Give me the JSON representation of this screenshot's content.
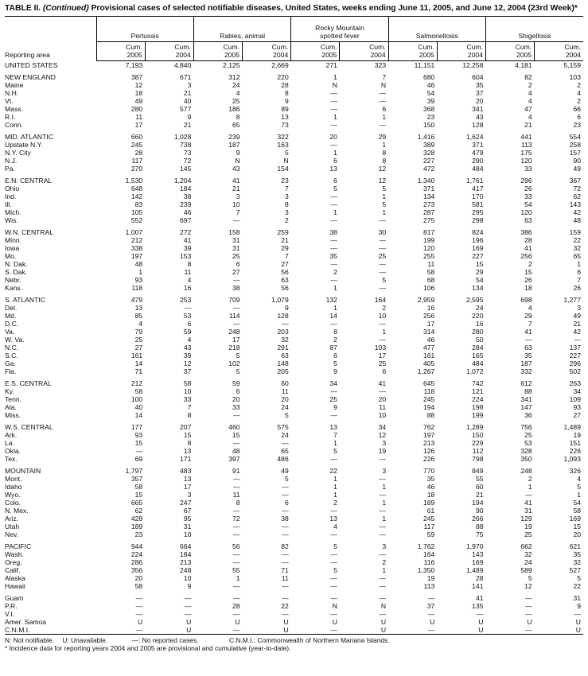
{
  "title": {
    "prefix": "TABLE II. ",
    "continued": "(Continued)",
    "text": " Provisional cases of selected notifiable diseases, United States, weeks ending June 11, 2005, and June 12, 2004 (23rd Week)*"
  },
  "header": {
    "reporting_area": "Reporting area",
    "diseases": [
      "Pertussis",
      "Rabies, animal",
      "Rocky Mountain spotted fever",
      "Salmonellosis",
      "Shigellosis"
    ],
    "cum_label": "Cum.",
    "years": [
      "2005",
      "2004"
    ]
  },
  "groups": [
    [
      [
        "UNITED STATES",
        "7,193",
        "4,840",
        "2,125",
        "2,669",
        "271",
        "323",
        "11,151",
        "12,258",
        "4,181",
        "5,159"
      ]
    ],
    [
      [
        "NEW ENGLAND",
        "387",
        "671",
        "312",
        "220",
        "1",
        "7",
        "680",
        "604",
        "82",
        "103"
      ],
      [
        "Maine",
        "12",
        "3",
        "24",
        "28",
        "N",
        "N",
        "46",
        "35",
        "2",
        "2"
      ],
      [
        "N.H.",
        "18",
        "21",
        "4",
        "8",
        "—",
        "—",
        "54",
        "37",
        "4",
        "4"
      ],
      [
        "Vt.",
        "49",
        "40",
        "25",
        "9",
        "—",
        "—",
        "39",
        "20",
        "4",
        "2"
      ],
      [
        "Mass.",
        "280",
        "577",
        "186",
        "89",
        "—",
        "6",
        "368",
        "341",
        "47",
        "66"
      ],
      [
        "R.I.",
        "11",
        "9",
        "8",
        "13",
        "1",
        "1",
        "23",
        "43",
        "4",
        "6"
      ],
      [
        "Conn.",
        "17",
        "21",
        "65",
        "73",
        "—",
        "—",
        "150",
        "128",
        "21",
        "23"
      ]
    ],
    [
      [
        "MID. ATLANTIC",
        "660",
        "1,028",
        "239",
        "322",
        "20",
        "29",
        "1,416",
        "1,624",
        "441",
        "554"
      ],
      [
        "Upstate N.Y.",
        "245",
        "738",
        "187",
        "163",
        "—",
        "1",
        "389",
        "371",
        "113",
        "258"
      ],
      [
        "N.Y. City",
        "28",
        "73",
        "9",
        "5",
        "1",
        "8",
        "328",
        "479",
        "175",
        "157"
      ],
      [
        "N.J.",
        "117",
        "72",
        "N",
        "N",
        "6",
        "8",
        "227",
        "290",
        "120",
        "90"
      ],
      [
        "Pa.",
        "270",
        "145",
        "43",
        "154",
        "13",
        "12",
        "472",
        "484",
        "33",
        "49"
      ]
    ],
    [
      [
        "E.N. CENTRAL",
        "1,530",
        "1,204",
        "41",
        "23",
        "6",
        "12",
        "1,340",
        "1,761",
        "296",
        "367"
      ],
      [
        "Ohio",
        "648",
        "184",
        "21",
        "7",
        "5",
        "5",
        "371",
        "417",
        "26",
        "72"
      ],
      [
        "Ind.",
        "142",
        "38",
        "3",
        "3",
        "—",
        "1",
        "134",
        "170",
        "33",
        "62"
      ],
      [
        "Ill.",
        "83",
        "239",
        "10",
        "8",
        "—",
        "5",
        "273",
        "581",
        "54",
        "143"
      ],
      [
        "Mich.",
        "105",
        "46",
        "7",
        "3",
        "1",
        "1",
        "287",
        "295",
        "120",
        "42"
      ],
      [
        "Wis.",
        "552",
        "697",
        "—",
        "2",
        "—",
        "—",
        "275",
        "298",
        "63",
        "48"
      ]
    ],
    [
      [
        "W.N. CENTRAL",
        "1,007",
        "272",
        "158",
        "259",
        "38",
        "30",
        "817",
        "824",
        "386",
        "159"
      ],
      [
        "Minn.",
        "212",
        "41",
        "31",
        "21",
        "—",
        "—",
        "199",
        "196",
        "28",
        "22"
      ],
      [
        "Iowa",
        "338",
        "39",
        "31",
        "29",
        "—",
        "—",
        "120",
        "169",
        "41",
        "32"
      ],
      [
        "Mo.",
        "197",
        "153",
        "25",
        "7",
        "35",
        "25",
        "255",
        "227",
        "256",
        "65"
      ],
      [
        "N. Dak.",
        "48",
        "8",
        "6",
        "27",
        "—",
        "—",
        "11",
        "15",
        "2",
        "1"
      ],
      [
        "S. Dak.",
        "1",
        "11",
        "27",
        "56",
        "2",
        "—",
        "58",
        "29",
        "15",
        "6"
      ],
      [
        "Nebr.",
        "93",
        "4",
        "—",
        "63",
        "—",
        "5",
        "68",
        "54",
        "26",
        "7"
      ],
      [
        "Kans.",
        "118",
        "16",
        "38",
        "56",
        "1",
        "—",
        "106",
        "134",
        "18",
        "26"
      ]
    ],
    [
      [
        "S. ATLANTIC",
        "479",
        "253",
        "709",
        "1,079",
        "132",
        "164",
        "2,959",
        "2,595",
        "698",
        "1,277"
      ],
      [
        "Del.",
        "13",
        "—",
        "—",
        "9",
        "1",
        "2",
        "16",
        "24",
        "4",
        "3"
      ],
      [
        "Md.",
        "85",
        "53",
        "114",
        "128",
        "14",
        "10",
        "256",
        "220",
        "29",
        "49"
      ],
      [
        "D.C.",
        "4",
        "6",
        "—",
        "—",
        "—",
        "—",
        "17",
        "16",
        "7",
        "21"
      ],
      [
        "Va.",
        "79",
        "59",
        "248",
        "203",
        "8",
        "1",
        "314",
        "280",
        "41",
        "42"
      ],
      [
        "W. Va.",
        "25",
        "4",
        "17",
        "32",
        "2",
        "—",
        "46",
        "50",
        "—",
        "—"
      ],
      [
        "N.C.",
        "27",
        "43",
        "218",
        "291",
        "87",
        "103",
        "477",
        "284",
        "63",
        "137"
      ],
      [
        "S.C.",
        "161",
        "39",
        "5",
        "63",
        "6",
        "17",
        "161",
        "165",
        "35",
        "227"
      ],
      [
        "Ga.",
        "14",
        "12",
        "102",
        "148",
        "5",
        "25",
        "405",
        "484",
        "187",
        "296"
      ],
      [
        "Fla.",
        "71",
        "37",
        "5",
        "205",
        "9",
        "6",
        "1,267",
        "1,072",
        "332",
        "502"
      ]
    ],
    [
      [
        "E.S. CENTRAL",
        "212",
        "58",
        "59",
        "60",
        "34",
        "41",
        "645",
        "742",
        "612",
        "263"
      ],
      [
        "Ky.",
        "58",
        "10",
        "6",
        "11",
        "—",
        "—",
        "118",
        "121",
        "88",
        "34"
      ],
      [
        "Tenn.",
        "100",
        "33",
        "20",
        "20",
        "25",
        "20",
        "245",
        "224",
        "341",
        "109"
      ],
      [
        "Ala.",
        "40",
        "7",
        "33",
        "24",
        "9",
        "11",
        "194",
        "198",
        "147",
        "93"
      ],
      [
        "Miss.",
        "14",
        "8",
        "—",
        "5",
        "—",
        "10",
        "88",
        "199",
        "36",
        "27"
      ]
    ],
    [
      [
        "W.S. CENTRAL",
        "177",
        "207",
        "460",
        "575",
        "13",
        "34",
        "762",
        "1,289",
        "756",
        "1,489"
      ],
      [
        "Ark.",
        "93",
        "15",
        "15",
        "24",
        "7",
        "12",
        "197",
        "150",
        "25",
        "19"
      ],
      [
        "La.",
        "15",
        "8",
        "—",
        "—",
        "1",
        "3",
        "213",
        "229",
        "53",
        "151"
      ],
      [
        "Okla.",
        "—",
        "13",
        "48",
        "65",
        "5",
        "19",
        "126",
        "112",
        "328",
        "226"
      ],
      [
        "Tex.",
        "69",
        "171",
        "397",
        "486",
        "—",
        "—",
        "226",
        "798",
        "350",
        "1,093"
      ]
    ],
    [
      [
        "MOUNTAIN",
        "1,797",
        "483",
        "91",
        "49",
        "22",
        "3",
        "770",
        "849",
        "248",
        "326"
      ],
      [
        "Mont.",
        "357",
        "13",
        "—",
        "5",
        "1",
        "—",
        "35",
        "55",
        "2",
        "4"
      ],
      [
        "Idaho",
        "58",
        "17",
        "—",
        "—",
        "1",
        "1",
        "46",
        "60",
        "1",
        "5"
      ],
      [
        "Wyo.",
        "15",
        "3",
        "11",
        "—",
        "1",
        "—",
        "18",
        "21",
        "—",
        "1"
      ],
      [
        "Colo.",
        "665",
        "247",
        "8",
        "6",
        "2",
        "1",
        "189",
        "194",
        "41",
        "54"
      ],
      [
        "N. Mex.",
        "62",
        "67",
        "—",
        "—",
        "—",
        "—",
        "61",
        "90",
        "31",
        "58"
      ],
      [
        "Ariz.",
        "428",
        "95",
        "72",
        "38",
        "13",
        "1",
        "245",
        "266",
        "129",
        "169"
      ],
      [
        "Utah",
        "189",
        "31",
        "—",
        "—",
        "4",
        "—",
        "117",
        "88",
        "19",
        "15"
      ],
      [
        "Nev.",
        "23",
        "10",
        "—",
        "—",
        "—",
        "—",
        "59",
        "75",
        "25",
        "20"
      ]
    ],
    [
      [
        "PACIFIC",
        "944",
        "664",
        "56",
        "82",
        "5",
        "3",
        "1,762",
        "1,970",
        "662",
        "621"
      ],
      [
        "Wash.",
        "224",
        "184",
        "—",
        "—",
        "—",
        "—",
        "164",
        "143",
        "32",
        "35"
      ],
      [
        "Oreg.",
        "286",
        "213",
        "—",
        "—",
        "—",
        "2",
        "116",
        "169",
        "24",
        "32"
      ],
      [
        "Calif.",
        "356",
        "248",
        "55",
        "71",
        "5",
        "1",
        "1,350",
        "1,489",
        "589",
        "527"
      ],
      [
        "Alaska",
        "20",
        "10",
        "1",
        "11",
        "—",
        "—",
        "19",
        "28",
        "5",
        "5"
      ],
      [
        "Hawaii",
        "58",
        "9",
        "—",
        "—",
        "—",
        "—",
        "113",
        "141",
        "12",
        "22"
      ]
    ],
    [
      [
        "Guam",
        "—",
        "—",
        "—",
        "—",
        "—",
        "—",
        "—",
        "41",
        "—",
        "31"
      ],
      [
        "P.R.",
        "—",
        "—",
        "28",
        "22",
        "N",
        "N",
        "37",
        "135",
        "—",
        "9"
      ],
      [
        "V.I.",
        "—",
        "—",
        "—",
        "—",
        "—",
        "—",
        "—",
        "—",
        "—",
        "—"
      ],
      [
        "Amer. Samoa",
        "U",
        "U",
        "U",
        "U",
        "U",
        "U",
        "U",
        "U",
        "U",
        "U"
      ],
      [
        "C.N.M.I.",
        "—",
        "U",
        "—",
        "U",
        "—",
        "U",
        "—",
        "U",
        "—",
        "U"
      ]
    ]
  ],
  "footer": {
    "legend": [
      "N: Not notifiable.",
      "U: Unavailable.",
      "—: No reported cases.",
      "C.N.M.I.: Commonwealth of Northern Mariana Islands."
    ],
    "note": "* Incidence data for reporting years 2004 and 2005 are provisional and cumulative (year-to-date)."
  }
}
